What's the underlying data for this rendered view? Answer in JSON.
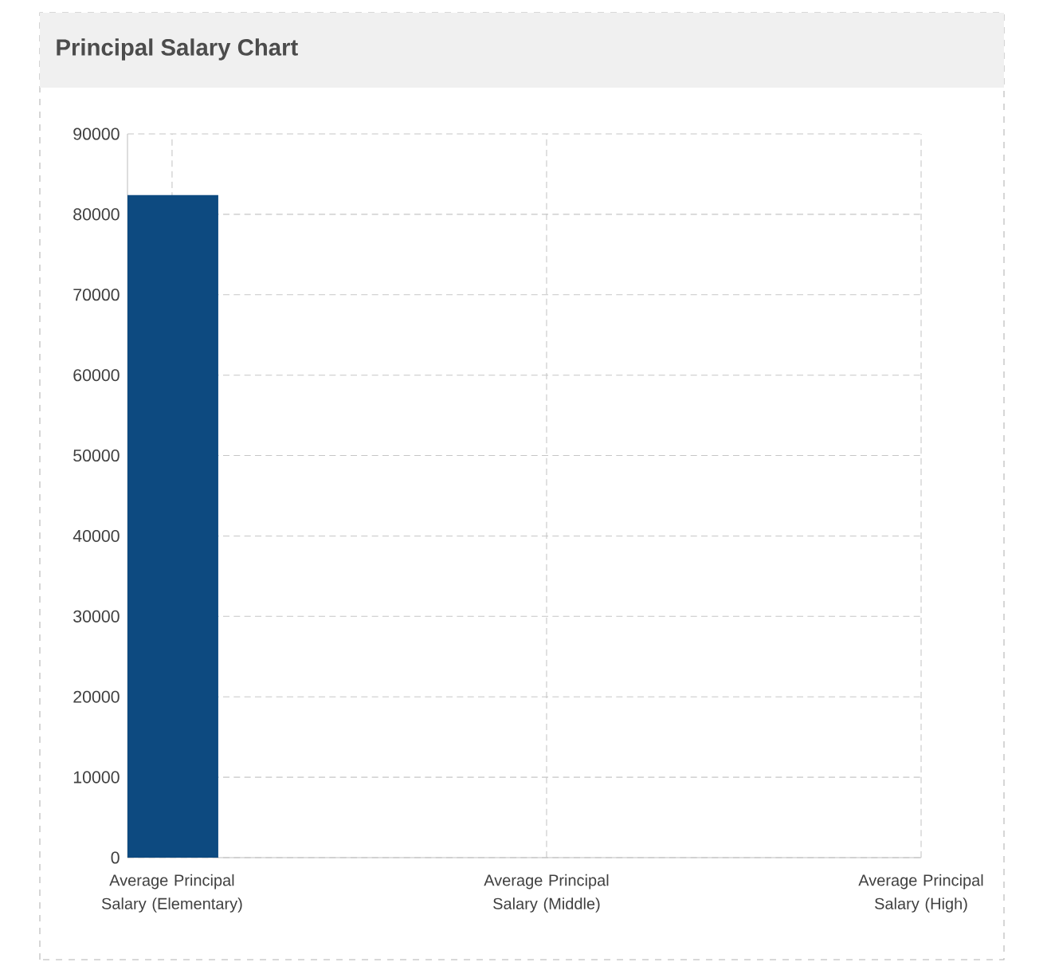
{
  "chart_data": {
    "type": "bar",
    "title": "Principal Salary Chart",
    "categories": [
      "Average Principal Salary (Elementary)",
      "Average Principal Salary (Middle)",
      "Average Principal Salary (High)"
    ],
    "values": [
      82400,
      null,
      null
    ],
    "color": "#0d4a80",
    "ylim": [
      0,
      90000
    ],
    "yticks": [
      0,
      10000,
      20000,
      30000,
      40000,
      50000,
      60000,
      70000,
      80000,
      90000
    ],
    "grid": true
  }
}
